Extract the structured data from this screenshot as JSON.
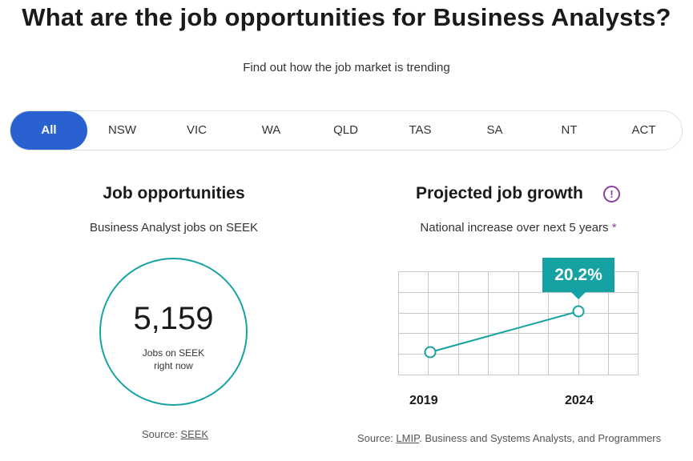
{
  "header": {
    "title": "What are the job opportunities for Business Analysts?",
    "subtitle": "Find out how the job market is trending"
  },
  "tabs": [
    {
      "label": "All",
      "active": true
    },
    {
      "label": "NSW",
      "active": false
    },
    {
      "label": "VIC",
      "active": false
    },
    {
      "label": "WA",
      "active": false
    },
    {
      "label": "QLD",
      "active": false
    },
    {
      "label": "TAS",
      "active": false
    },
    {
      "label": "SA",
      "active": false
    },
    {
      "label": "NT",
      "active": false
    },
    {
      "label": "ACT",
      "active": false
    }
  ],
  "opportunities": {
    "title": "Job opportunities",
    "subtitle": "Business Analyst jobs on SEEK",
    "count": "5,159",
    "label_line1": "Jobs on SEEK",
    "label_line2": "right now",
    "source_prefix": "Source: ",
    "source_link": "SEEK"
  },
  "growth": {
    "title": "Projected job growth",
    "info_icon": "!",
    "subtitle": "National increase over next 5 years",
    "asterisk": "*",
    "badge": "20.2%",
    "source_prefix": "Source: ",
    "source_link": "LMIP",
    "source_suffix": ". Business and Systems Analysts, and Programmers"
  },
  "chart_data": {
    "type": "line",
    "x": [
      "2019",
      "2024"
    ],
    "series": [
      {
        "values": [
          0,
          20.2
        ]
      }
    ],
    "annotations": [
      "20.2%"
    ],
    "grid": true
  },
  "colors": {
    "accent": "#2962d0",
    "teal": "#16a2a2",
    "info": "#8a3fa6"
  }
}
